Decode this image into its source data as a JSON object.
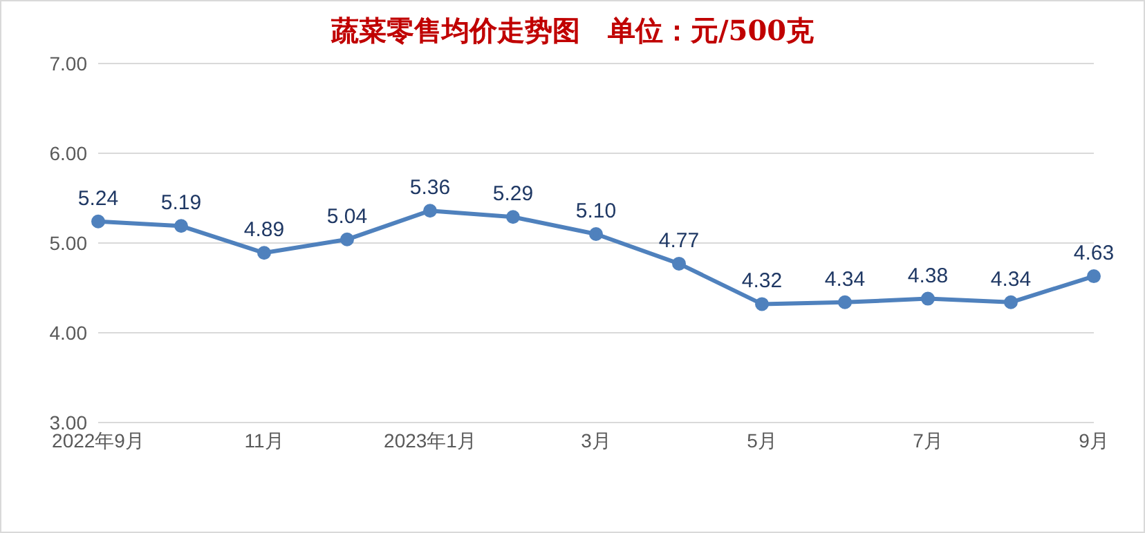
{
  "chart_data": {
    "type": "line",
    "title": "蔬菜零售均价走势图　单位：元/500克",
    "categories": [
      "2022年9月",
      null,
      "11月",
      null,
      "2023年1月",
      null,
      "3月",
      null,
      "5月",
      null,
      "7月",
      null,
      "9月"
    ],
    "series": [
      {
        "color": "#4f81bd",
        "values": [
          5.24,
          5.19,
          4.89,
          5.04,
          5.36,
          5.29,
          5.1,
          4.77,
          4.32,
          4.34,
          4.38,
          4.34,
          4.63
        ],
        "value_labels": [
          "5.24",
          "5.19",
          "4.89",
          "5.04",
          "5.36",
          "5.29",
          "5.10",
          "4.77",
          "4.32",
          "4.34",
          "4.38",
          "4.34",
          "4.63"
        ]
      }
    ],
    "ylim": [
      3,
      7
    ],
    "yticks": [
      {
        "value": 3,
        "label": "3.00"
      },
      {
        "value": 4,
        "label": "4.00"
      },
      {
        "value": 5,
        "label": "5.00"
      },
      {
        "value": 6,
        "label": "6.00"
      },
      {
        "value": 7,
        "label": "7.00"
      }
    ],
    "grid": "y",
    "marker": "circle",
    "line_style": "solid"
  }
}
